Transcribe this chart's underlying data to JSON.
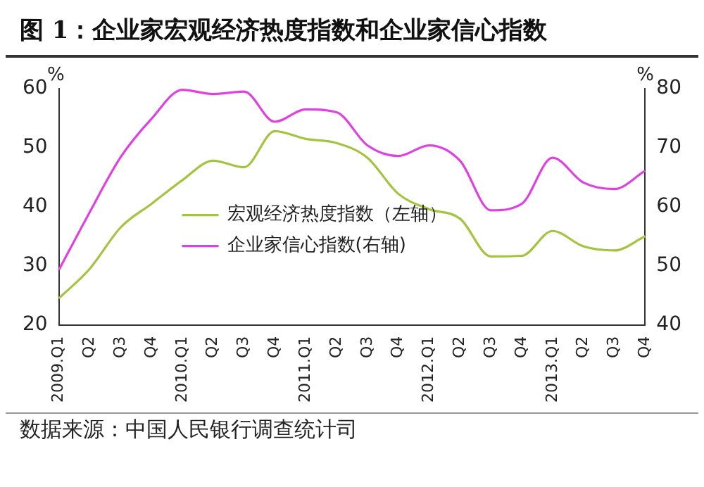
{
  "chart_data": {
    "type": "line",
    "title": "图 1：企业家宏观经济热度指数和企业家信心指数",
    "ylabel": "%",
    "y2label": "%",
    "categories": [
      "2009.Q1",
      "Q2",
      "Q3",
      "Q4",
      "2010.Q1",
      "Q2",
      "Q3",
      "Q4",
      "2011.Q1",
      "Q2",
      "Q3",
      "Q4",
      "2012.Q1",
      "Q2",
      "Q3",
      "Q4",
      "2013.Q1",
      "Q2",
      "Q3",
      "Q4"
    ],
    "series": [
      {
        "name": "宏观经济热度指数（左轴）",
        "color": "#a3c43f",
        "values": [
          24.5,
          29.5,
          36.5,
          40.5,
          44.5,
          47.8,
          46.7,
          52.8,
          51.5,
          50.8,
          48.3,
          42.2,
          39.6,
          38,
          31.6,
          31.7,
          35.9,
          33.3,
          32.6,
          35
        ]
      },
      {
        "name": "企业家信心指数(右轴)",
        "color": "#e040e0",
        "axis": "y2",
        "values": [
          49.3,
          59.1,
          68.4,
          74.9,
          79.8,
          79.1,
          79.5,
          74.4,
          76.5,
          76,
          70.4,
          68.6,
          70.4,
          67.8,
          59.4,
          60.5,
          68.3,
          64.1,
          63,
          66.1
        ]
      }
    ],
    "ylim": [
      20,
      60
    ],
    "yticks": [
      20,
      30,
      40,
      50,
      60
    ],
    "y2lim": [
      40,
      80
    ],
    "y2ticks": [
      40,
      50,
      60,
      70,
      80
    ],
    "grid": false,
    "legend": "bottom",
    "marker": "none",
    "line_style": "solid",
    "annotations": [
      "数据来源：中国人民银行调查统计司"
    ]
  }
}
